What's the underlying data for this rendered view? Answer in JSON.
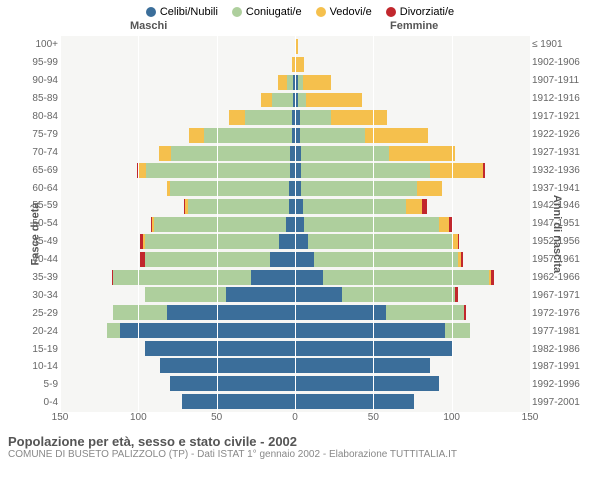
{
  "legend": [
    {
      "label": "Celibi/Nubili",
      "color": "#3b6e9a"
    },
    {
      "label": "Coniugati/e",
      "color": "#aecf9d"
    },
    {
      "label": "Vedovi/e",
      "color": "#f5c04d"
    },
    {
      "label": "Divorziati/e",
      "color": "#c1272d"
    }
  ],
  "headers": {
    "male": "Maschi",
    "female": "Femmine"
  },
  "ylabel_left": "Fasce di età",
  "ylabel_right": "Anni di nascita",
  "title": "Popolazione per età, sesso e stato civile - 2002",
  "subtitle": "COMUNE DI BUSETO PALIZZOLO (TP) - Dati ISTAT 1° gennaio 2002 - Elaborazione TUTTITALIA.IT",
  "xmax": 150,
  "xticks": [
    150,
    100,
    50,
    0,
    50,
    100,
    150
  ],
  "background_color": "#f6f6f4",
  "grid_color": "#ffffff",
  "bar_height_pct": 84,
  "rows": [
    {
      "age": "100+",
      "birth": "≤ 1901",
      "m": [
        0,
        0,
        0,
        0
      ],
      "f": [
        0,
        0,
        2,
        0
      ]
    },
    {
      "age": "95-99",
      "birth": "1902-1906",
      "m": [
        0,
        0,
        2,
        0
      ],
      "f": [
        0,
        0,
        6,
        0
      ]
    },
    {
      "age": "90-94",
      "birth": "1907-1911",
      "m": [
        1,
        4,
        6,
        0
      ],
      "f": [
        2,
        3,
        18,
        0
      ]
    },
    {
      "age": "85-89",
      "birth": "1912-1916",
      "m": [
        1,
        14,
        7,
        0
      ],
      "f": [
        2,
        5,
        36,
        0
      ]
    },
    {
      "age": "80-84",
      "birth": "1917-1921",
      "m": [
        2,
        30,
        10,
        0
      ],
      "f": [
        3,
        20,
        36,
        0
      ]
    },
    {
      "age": "75-79",
      "birth": "1922-1926",
      "m": [
        2,
        56,
        10,
        0
      ],
      "f": [
        3,
        42,
        40,
        0
      ]
    },
    {
      "age": "70-74",
      "birth": "1927-1931",
      "m": [
        3,
        76,
        8,
        0
      ],
      "f": [
        4,
        56,
        42,
        0
      ]
    },
    {
      "age": "65-69",
      "birth": "1932-1936",
      "m": [
        3,
        92,
        5,
        1
      ],
      "f": [
        4,
        82,
        34,
        1
      ]
    },
    {
      "age": "60-64",
      "birth": "1937-1941",
      "m": [
        4,
        76,
        2,
        0
      ],
      "f": [
        4,
        74,
        16,
        0
      ]
    },
    {
      "age": "55-59",
      "birth": "1942-1946",
      "m": [
        4,
        64,
        2,
        1
      ],
      "f": [
        5,
        66,
        10,
        3
      ]
    },
    {
      "age": "50-54",
      "birth": "1947-1951",
      "m": [
        6,
        84,
        1,
        1
      ],
      "f": [
        6,
        86,
        6,
        2
      ]
    },
    {
      "age": "45-49",
      "birth": "1952-1956",
      "m": [
        10,
        86,
        1,
        2
      ],
      "f": [
        8,
        92,
        4,
        1
      ]
    },
    {
      "age": "40-44",
      "birth": "1957-1961",
      "m": [
        16,
        80,
        0,
        3
      ],
      "f": [
        12,
        92,
        2,
        1
      ]
    },
    {
      "age": "35-39",
      "birth": "1962-1966",
      "m": [
        28,
        88,
        0,
        1
      ],
      "f": [
        18,
        106,
        1,
        2
      ]
    },
    {
      "age": "30-34",
      "birth": "1967-1971",
      "m": [
        44,
        52,
        0,
        0
      ],
      "f": [
        30,
        72,
        0,
        2
      ]
    },
    {
      "age": "25-29",
      "birth": "1972-1976",
      "m": [
        82,
        34,
        0,
        0
      ],
      "f": [
        58,
        50,
        0,
        1
      ]
    },
    {
      "age": "20-24",
      "birth": "1977-1981",
      "m": [
        112,
        8,
        0,
        0
      ],
      "f": [
        96,
        16,
        0,
        0
      ]
    },
    {
      "age": "15-19",
      "birth": "1982-1986",
      "m": [
        96,
        0,
        0,
        0
      ],
      "f": [
        100,
        1,
        0,
        0
      ]
    },
    {
      "age": "10-14",
      "birth": "1987-1991",
      "m": [
        86,
        0,
        0,
        0
      ],
      "f": [
        86,
        0,
        0,
        0
      ]
    },
    {
      "age": "5-9",
      "birth": "1992-1996",
      "m": [
        80,
        0,
        0,
        0
      ],
      "f": [
        92,
        0,
        0,
        0
      ]
    },
    {
      "age": "0-4",
      "birth": "1997-2001",
      "m": [
        72,
        0,
        0,
        0
      ],
      "f": [
        76,
        0,
        0,
        0
      ]
    }
  ]
}
